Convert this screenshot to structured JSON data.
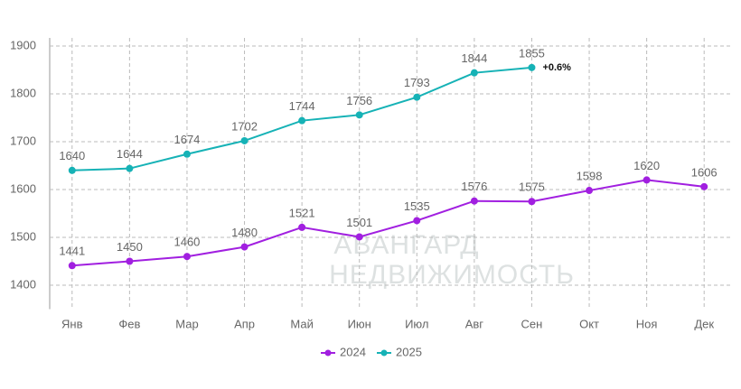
{
  "chart_data": {
    "type": "line",
    "categories": [
      "Янв",
      "Фев",
      "Мар",
      "Апр",
      "Май",
      "Июн",
      "Июл",
      "Авг",
      "Сен",
      "Окт",
      "Ноя",
      "Дек"
    ],
    "series": [
      {
        "name": "2024",
        "color": "#a11fe0",
        "values": [
          1441,
          1450,
          1460,
          1480,
          1521,
          1501,
          1535,
          1576,
          1575,
          1598,
          1620,
          1606
        ]
      },
      {
        "name": "2025",
        "color": "#16b2b6",
        "values": [
          1640,
          1644,
          1674,
          1702,
          1744,
          1756,
          1793,
          1844,
          1855,
          null,
          null,
          null
        ]
      }
    ],
    "ylim": [
      1350,
      1900
    ],
    "yticks": [
      1400,
      1500,
      1600,
      1700,
      1800,
      1900
    ],
    "grid": true,
    "annotation": "+0.6%",
    "watermark": [
      "АВАНГАРД",
      "НЕДВИЖИМОСТЬ"
    ],
    "legend": "bottom"
  }
}
